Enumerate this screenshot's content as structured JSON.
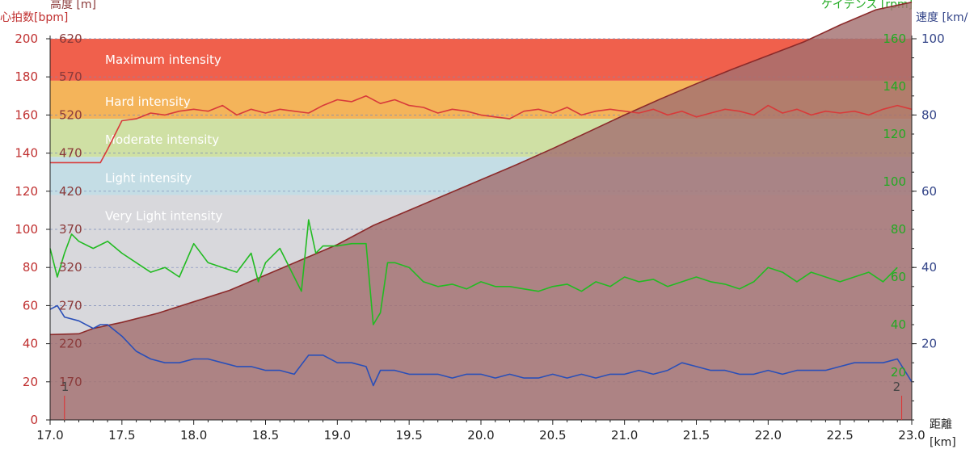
{
  "chart_data": {
    "type": "line",
    "x_range": [
      17.0,
      23.0
    ],
    "x_ticks": [
      "17.0",
      "17.5",
      "18.0",
      "18.5",
      "19.0",
      "19.5",
      "20.0",
      "20.5",
      "21.0",
      "21.5",
      "22.0",
      "22.5",
      "23.0"
    ],
    "axis_labels": {
      "hr": "心拍数[bpm]",
      "altitude": "高度 [m]",
      "cadence": "ケイデンス [rpm]",
      "speed": "速度 [km/",
      "x_top": "距離",
      "x_bottom": "[km]"
    },
    "hr_axis": {
      "range": [
        0,
        200
      ],
      "ticks": [
        "0",
        "20",
        "40",
        "60",
        "80",
        "100",
        "120",
        "140",
        "160",
        "180",
        "200"
      ],
      "color": "#c03030"
    },
    "altitude_axis": {
      "range": [
        120,
        620
      ],
      "ticks": [
        "170",
        "220",
        "270",
        "320",
        "370",
        "420",
        "470",
        "520",
        "570",
        "620"
      ],
      "color": "#8b3a3a"
    },
    "cadence_axis": {
      "range": [
        0,
        160
      ],
      "ticks": [
        "20",
        "40",
        "60",
        "80",
        "100",
        "120",
        "140",
        "160"
      ],
      "color": "#22aa22"
    },
    "speed_axis": {
      "range": [
        0,
        100
      ],
      "ticks": [
        "20",
        "40",
        "60",
        "80",
        "100"
      ],
      "color": "#334488"
    },
    "zones": [
      {
        "name": "Maximum intensity",
        "from": 178,
        "to": 200,
        "color": "#f0604c"
      },
      {
        "name": "Hard intensity",
        "from": 158,
        "to": 178,
        "color": "#f4b45a"
      },
      {
        "name": "Moderate intensity",
        "from": 138,
        "to": 158,
        "color": "#cfe0a4"
      },
      {
        "name": "Light intensity",
        "from": 118,
        "to": 138,
        "color": "#c4dde5"
      },
      {
        "name": "Very Light intensity",
        "from": 0,
        "to": 118,
        "color": "#d8d8dc"
      }
    ],
    "markers": [
      "1",
      "2"
    ],
    "series": [
      {
        "key": "heart_rate",
        "axis": "hr",
        "color": "#d83a3a",
        "x": [
          17.0,
          17.15,
          17.25,
          17.35,
          17.4,
          17.5,
          17.6,
          17.7,
          17.8,
          17.9,
          18.0,
          18.1,
          18.2,
          18.3,
          18.4,
          18.5,
          18.6,
          18.7,
          18.8,
          18.9,
          19.0,
          19.1,
          19.2,
          19.3,
          19.4,
          19.5,
          19.6,
          19.7,
          19.8,
          19.9,
          20.0,
          20.1,
          20.2,
          20.3,
          20.4,
          20.5,
          20.6,
          20.7,
          20.8,
          20.9,
          21.0,
          21.1,
          21.2,
          21.3,
          21.4,
          21.5,
          21.6,
          21.7,
          21.8,
          21.9,
          22.0,
          22.1,
          22.2,
          22.3,
          22.4,
          22.5,
          22.6,
          22.7,
          22.8,
          22.9,
          23.0
        ],
        "values": [
          135,
          135,
          135,
          135,
          142,
          157,
          158,
          161,
          160,
          162,
          163,
          162,
          165,
          160,
          163,
          161,
          163,
          162,
          161,
          165,
          168,
          167,
          170,
          166,
          168,
          165,
          164,
          161,
          163,
          162,
          160,
          159,
          158,
          162,
          163,
          161,
          164,
          160,
          162,
          163,
          162,
          161,
          163,
          160,
          162,
          159,
          161,
          163,
          162,
          160,
          165,
          161,
          163,
          160,
          162,
          161,
          162,
          160,
          163,
          165,
          163
        ]
      },
      {
        "key": "cadence",
        "axis": "cadence",
        "color": "#22bb22",
        "x": [
          17.0,
          17.05,
          17.1,
          17.15,
          17.2,
          17.3,
          17.4,
          17.5,
          17.6,
          17.7,
          17.8,
          17.9,
          18.0,
          18.1,
          18.2,
          18.3,
          18.4,
          18.45,
          18.5,
          18.6,
          18.7,
          18.75,
          18.8,
          18.85,
          18.9,
          19.0,
          19.1,
          19.2,
          19.25,
          19.3,
          19.35,
          19.4,
          19.5,
          19.6,
          19.7,
          19.8,
          19.9,
          20.0,
          20.1,
          20.2,
          20.3,
          20.4,
          20.5,
          20.6,
          20.7,
          20.8,
          20.9,
          21.0,
          21.1,
          21.2,
          21.3,
          21.4,
          21.5,
          21.6,
          21.7,
          21.8,
          21.9,
          22.0,
          22.1,
          22.2,
          22.3,
          22.4,
          22.5,
          22.6,
          22.7,
          22.8,
          22.9
        ],
        "values": [
          72,
          60,
          70,
          78,
          75,
          72,
          75,
          70,
          66,
          62,
          64,
          60,
          74,
          66,
          64,
          62,
          70,
          58,
          66,
          72,
          60,
          54,
          84,
          70,
          73,
          73,
          74,
          74,
          40,
          45,
          66,
          66,
          64,
          58,
          56,
          57,
          55,
          58,
          56,
          56,
          55,
          54,
          56,
          57,
          54,
          58,
          56,
          60,
          58,
          59,
          56,
          58,
          60,
          58,
          57,
          55,
          58,
          64,
          62,
          58,
          62,
          60,
          58,
          60,
          62,
          58,
          64
        ]
      },
      {
        "key": "speed",
        "axis": "speed",
        "color": "#2a4fb8",
        "x": [
          17.0,
          17.05,
          17.1,
          17.2,
          17.3,
          17.35,
          17.4,
          17.5,
          17.6,
          17.7,
          17.8,
          17.9,
          18.0,
          18.1,
          18.2,
          18.3,
          18.4,
          18.5,
          18.6,
          18.7,
          18.8,
          18.9,
          19.0,
          19.1,
          19.2,
          19.25,
          19.3,
          19.4,
          19.5,
          19.6,
          19.7,
          19.8,
          19.9,
          20.0,
          20.1,
          20.2,
          20.3,
          20.4,
          20.5,
          20.6,
          20.7,
          20.8,
          20.9,
          21.0,
          21.1,
          21.2,
          21.3,
          21.4,
          21.5,
          21.6,
          21.7,
          21.8,
          21.9,
          22.0,
          22.1,
          22.2,
          22.3,
          22.4,
          22.5,
          22.6,
          22.7,
          22.8,
          22.9,
          23.0
        ],
        "values": [
          29,
          30,
          27,
          26,
          24,
          25,
          25,
          22,
          18,
          16,
          15,
          15,
          16,
          16,
          15,
          14,
          14,
          13,
          13,
          12,
          17,
          17,
          15,
          15,
          14,
          9,
          13,
          13,
          12,
          12,
          12,
          11,
          12,
          12,
          11,
          12,
          11,
          11,
          12,
          11,
          12,
          11,
          12,
          12,
          13,
          12,
          13,
          15,
          14,
          13,
          13,
          12,
          12,
          13,
          12,
          13,
          13,
          13,
          14,
          15,
          15,
          15,
          16,
          10
        ]
      }
    ],
    "altitude": {
      "axis": "altitude",
      "color": "#8b2a2a",
      "fill": "#a37070",
      "x": [
        17.0,
        17.2,
        17.3,
        17.5,
        17.75,
        18.0,
        18.25,
        18.5,
        18.75,
        19.0,
        19.25,
        19.5,
        19.75,
        20.0,
        20.25,
        20.5,
        20.75,
        21.0,
        21.25,
        21.5,
        21.75,
        22.0,
        22.25,
        22.5,
        22.75,
        23.0
      ],
      "values": [
        232,
        233,
        240,
        248,
        260,
        275,
        290,
        310,
        330,
        350,
        375,
        395,
        415,
        435,
        455,
        476,
        498,
        520,
        541,
        561,
        580,
        598,
        616,
        638,
        658,
        668
      ]
    }
  }
}
